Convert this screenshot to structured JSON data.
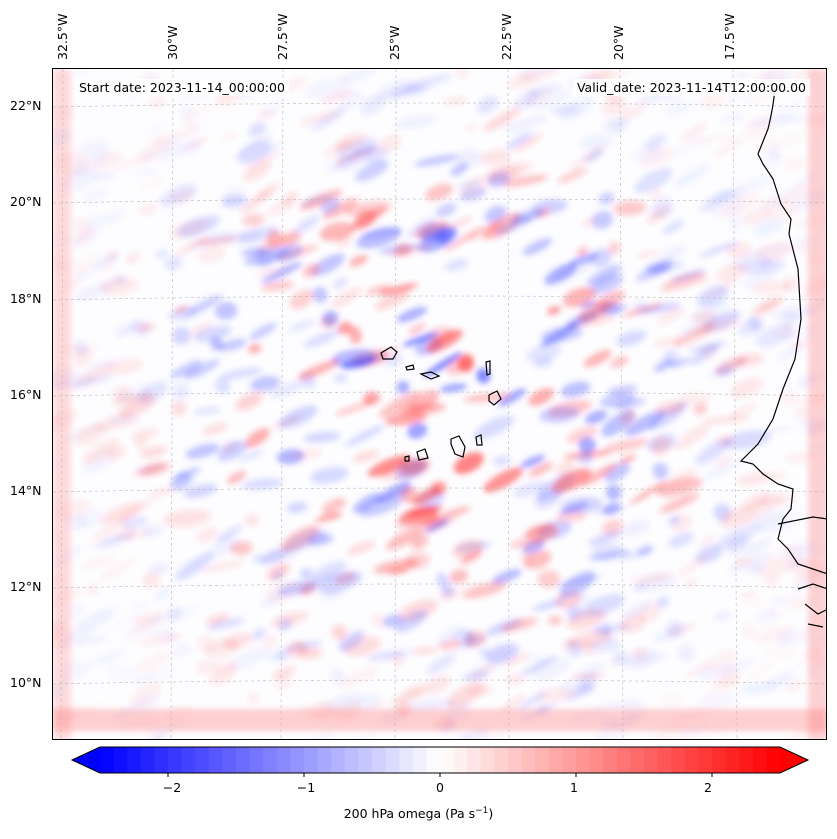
{
  "annotations": {
    "start": "Start date: 2023-11-14_00:00:00",
    "valid": "Valid_date: 2023-11-14T12:00:00.00"
  },
  "longitude_labels": [
    "32.5°W",
    "30°W",
    "27.5°W",
    "25°W",
    "22.5°W",
    "20°W",
    "17.5°W"
  ],
  "latitude_labels": [
    "22°N",
    "20°N",
    "18°N",
    "16°N",
    "14°N",
    "12°N",
    "10°N"
  ],
  "colorbar": {
    "ticks": [
      "−2",
      "−1",
      "0",
      "1",
      "2"
    ],
    "tick_values": [
      -2,
      -1,
      0,
      1,
      2
    ],
    "range": [
      -2.5,
      2.5
    ],
    "label_main": "200 hPa omega (Pa s",
    "label_sup": "−1",
    "label_end": ")",
    "colors": {
      "negative": "#0000ff",
      "zero": "#ffffff",
      "positive": "#ff0000"
    }
  },
  "map": {
    "coastline_color": "#000000",
    "gridline_color": "#b0b0b0",
    "ocean_background": "#ffffff"
  }
}
